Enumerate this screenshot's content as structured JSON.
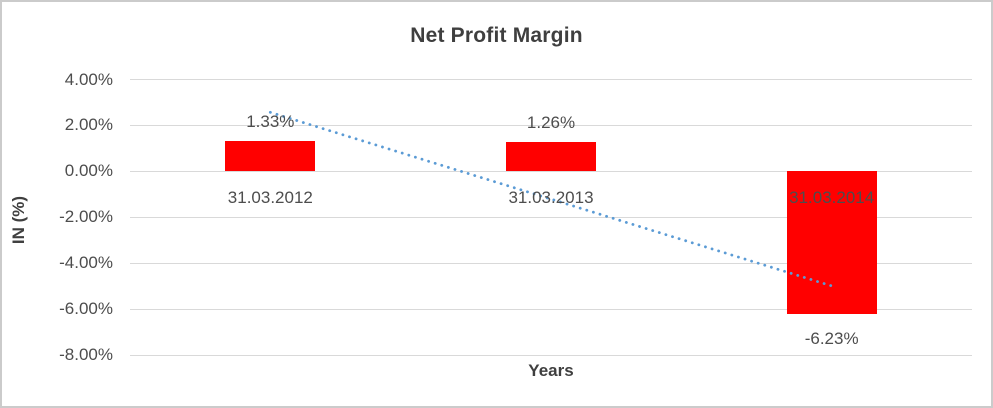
{
  "frame": {
    "background": "#ffffff",
    "border_color": "#cbcbcb"
  },
  "chart_data": {
    "type": "bar",
    "title": "Net Profit Margin",
    "xlabel": "Years",
    "ylabel": "IN (%)",
    "categories": [
      "31.03.2012",
      "31.03.2013",
      "31.03.2014"
    ],
    "series": [
      {
        "name": "Net Profit Margin",
        "color": "#ff0000",
        "values": [
          1.33,
          1.26,
          -6.23
        ],
        "data_labels": [
          "1.33%",
          "1.26%",
          "-6.23%"
        ]
      }
    ],
    "y_axis": {
      "min": -8,
      "max": 4,
      "ticks": [
        {
          "value": 4,
          "label": "4.00%"
        },
        {
          "value": 2,
          "label": "2.00%"
        },
        {
          "value": 0,
          "label": "0.00%"
        },
        {
          "value": -2,
          "label": "-2.00%"
        },
        {
          "value": -4,
          "label": "-4.00%"
        },
        {
          "value": -6,
          "label": "-6.00%"
        },
        {
          "value": -8,
          "label": "-8.00%"
        }
      ]
    },
    "grid": true,
    "legend": "none",
    "gridline_color": "#d9d9d9",
    "label_color": "#4d4d4d",
    "title_color": "#3f3f3f",
    "trendline": {
      "type": "linear",
      "style": "dotted",
      "color": "#5b9bd5",
      "points": [
        {
          "category_index": 0,
          "value": 2.57
        },
        {
          "category_index": 2,
          "value": -4.99
        }
      ]
    }
  }
}
